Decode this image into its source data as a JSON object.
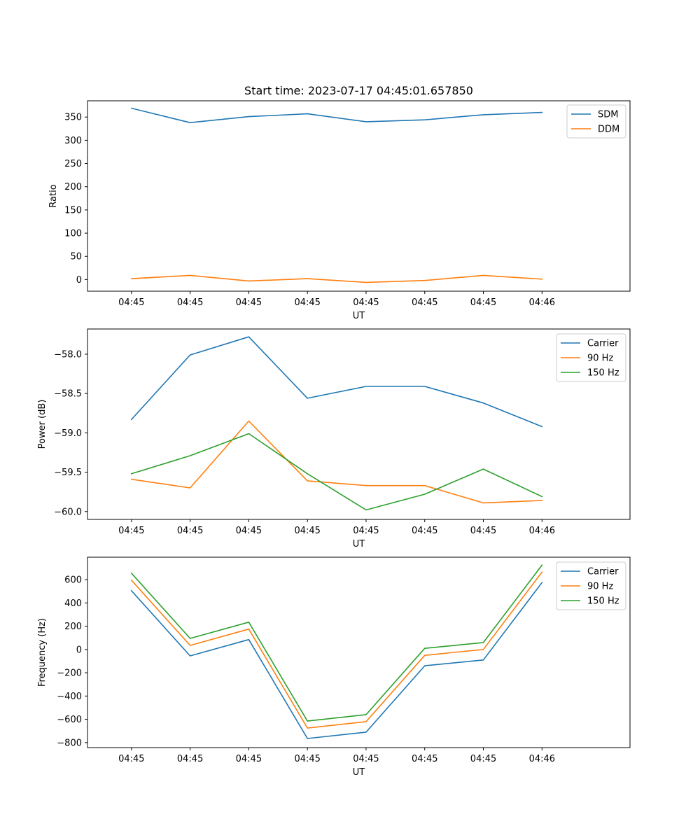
{
  "chart_data": [
    {
      "type": "line",
      "title": "Start time: 2023-07-17 04:45:01.657850",
      "xlabel": "UT",
      "ylabel": "Ratio",
      "x_tick_labels": [
        "04:45",
        "04:45",
        "04:45",
        "04:45",
        "04:45",
        "04:45",
        "04:45",
        "04:46"
      ],
      "xlim": [
        -0.75,
        8.5
      ],
      "ylim": [
        -25,
        385
      ],
      "y_ticks": [
        0,
        50,
        100,
        150,
        200,
        250,
        300,
        350
      ],
      "legend_position": "top-right",
      "x": [
        0,
        1,
        2,
        3,
        4,
        5,
        6,
        7
      ],
      "series": [
        {
          "name": "SDM",
          "color": "#1f77b4",
          "values": [
            369,
            338,
            351,
            357,
            340,
            344,
            355,
            360
          ]
        },
        {
          "name": "DDM",
          "color": "#ff7f0e",
          "values": [
            2,
            9,
            -3,
            2,
            -6,
            -2,
            9,
            1
          ]
        }
      ]
    },
    {
      "type": "line",
      "title": "",
      "xlabel": "UT",
      "ylabel": "Power (dB)",
      "x_tick_labels": [
        "04:45",
        "04:45",
        "04:45",
        "04:45",
        "04:45",
        "04:45",
        "04:45",
        "04:46"
      ],
      "xlim": [
        -0.75,
        8.5
      ],
      "ylim": [
        -60.1,
        -57.68
      ],
      "y_ticks": [
        -60.0,
        -59.5,
        -59.0,
        -58.5,
        -58.0
      ],
      "y_tick_labels": [
        "−60.0",
        "−59.5",
        "−59.0",
        "−58.5",
        "−58.0"
      ],
      "legend_position": "top-right",
      "x": [
        0,
        1,
        2,
        3,
        4,
        5,
        6,
        7
      ],
      "series": [
        {
          "name": "Carrier",
          "color": "#1f77b4",
          "values": [
            -58.83,
            -58.01,
            -57.78,
            -58.56,
            -58.41,
            -58.41,
            -58.62,
            -58.92
          ]
        },
        {
          "name": "90 Hz",
          "color": "#ff7f0e",
          "values": [
            -59.59,
            -59.7,
            -58.85,
            -59.61,
            -59.67,
            -59.67,
            -59.89,
            -59.86
          ]
        },
        {
          "name": "150 Hz",
          "color": "#2ca02c",
          "values": [
            -59.52,
            -59.29,
            -59.01,
            -59.52,
            -59.98,
            -59.78,
            -59.46,
            -59.81
          ]
        }
      ]
    },
    {
      "type": "line",
      "title": "",
      "xlabel": "UT",
      "ylabel": "Frequency (Hz)",
      "x_tick_labels": [
        "04:45",
        "04:45",
        "04:45",
        "04:45",
        "04:45",
        "04:45",
        "04:45",
        "04:46"
      ],
      "xlim": [
        -0.75,
        8.5
      ],
      "ylim": [
        -843,
        793
      ],
      "y_ticks": [
        -800,
        -600,
        -400,
        -200,
        0,
        200,
        400,
        600
      ],
      "y_tick_labels": [
        "−800",
        "−600",
        "−400",
        "−200",
        "0",
        "200",
        "400",
        "600"
      ],
      "legend_position": "top-right",
      "x": [
        0,
        1,
        2,
        3,
        4,
        5,
        6,
        7
      ],
      "series": [
        {
          "name": "Carrier",
          "color": "#1f77b4",
          "values": [
            505,
            -55,
            85,
            -765,
            -710,
            -140,
            -90,
            575
          ]
        },
        {
          "name": "90 Hz",
          "color": "#ff7f0e",
          "values": [
            595,
            35,
            175,
            -675,
            -620,
            -50,
            0,
            665
          ]
        },
        {
          "name": "150 Hz",
          "color": "#2ca02c",
          "values": [
            655,
            95,
            235,
            -615,
            -560,
            10,
            60,
            725
          ]
        }
      ]
    }
  ]
}
